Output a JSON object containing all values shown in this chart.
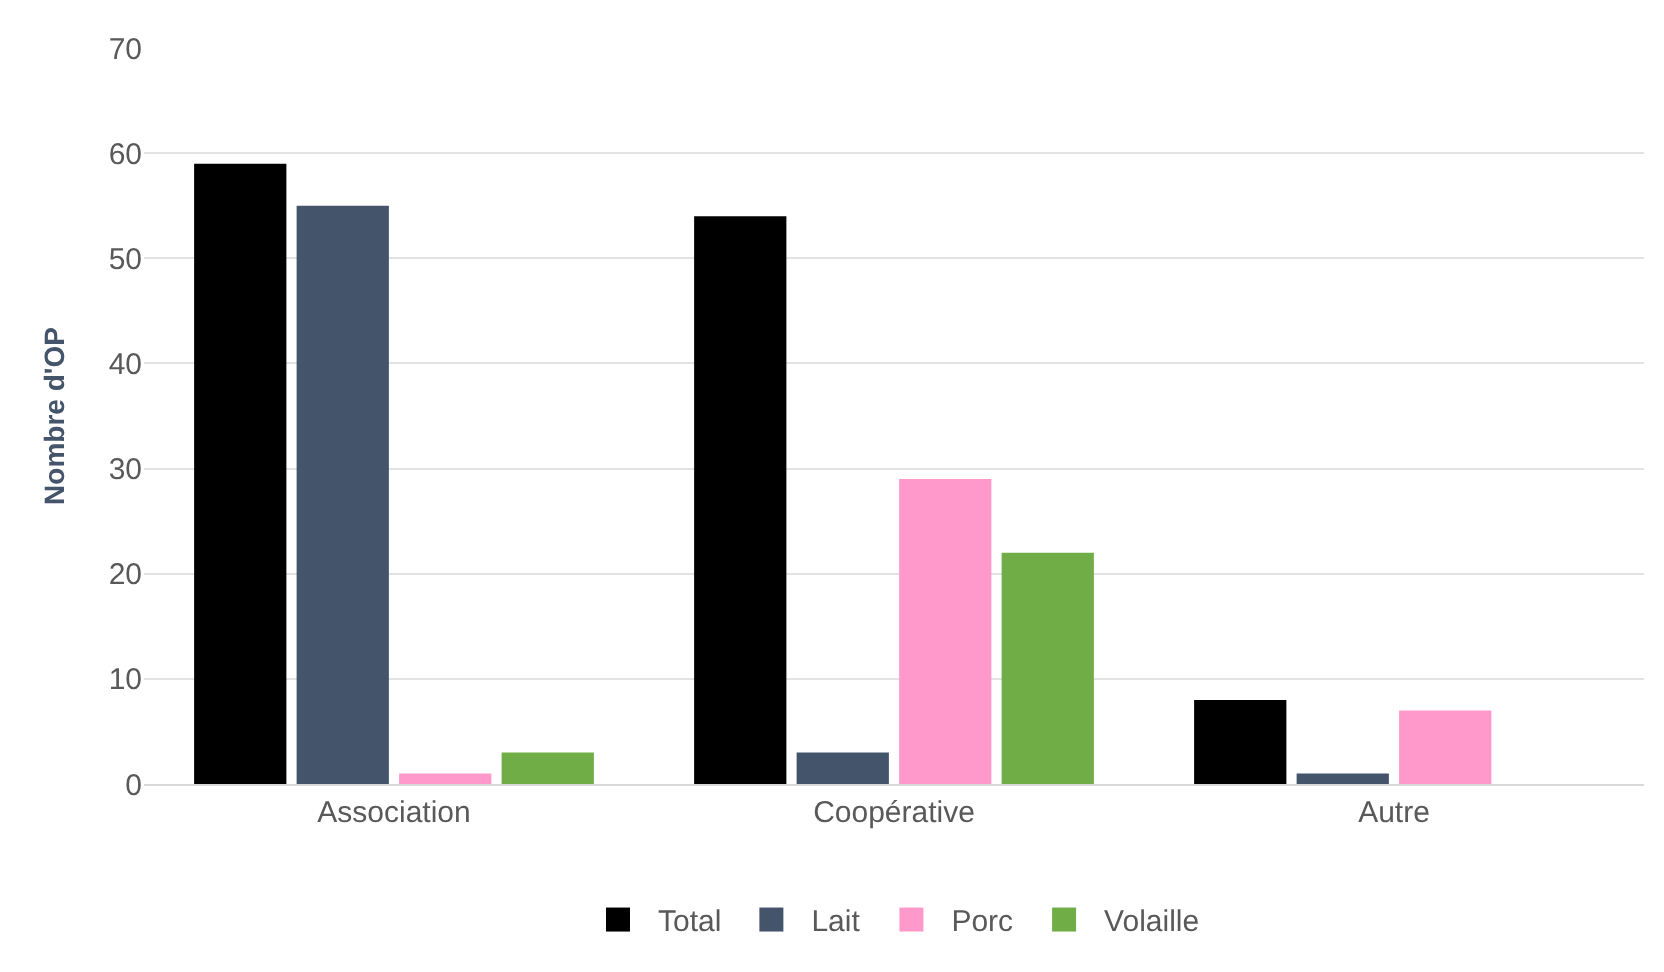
{
  "chart_data": {
    "type": "bar",
    "ylabel": "Nombre d'OP",
    "categories": [
      "Association",
      "Coopérative",
      "Autre"
    ],
    "series": [
      {
        "name": "Total",
        "color": "#000000",
        "values": [
          59,
          54,
          8
        ]
      },
      {
        "name": "Lait",
        "color": "#44546a",
        "values": [
          55,
          3,
          1
        ]
      },
      {
        "name": "Porc",
        "color": "#ff99cc",
        "values": [
          1,
          29,
          7
        ]
      },
      {
        "name": "Volaille",
        "color": "#70ad47",
        "values": [
          3,
          22,
          0
        ]
      }
    ],
    "ylim": [
      0,
      70
    ],
    "yticks": [
      0,
      10,
      20,
      30,
      40,
      50,
      60,
      70
    ],
    "grid": "y",
    "legend": "bottom"
  }
}
